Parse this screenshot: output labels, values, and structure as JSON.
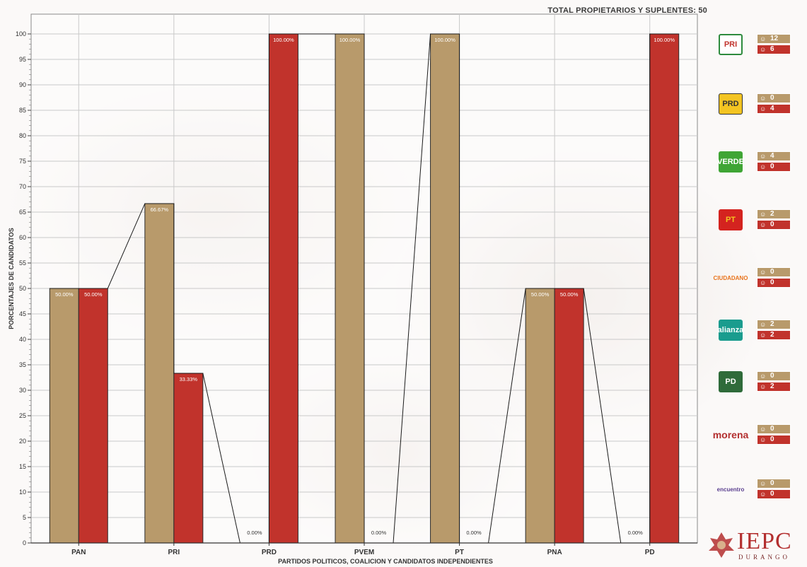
{
  "header": {
    "total_text": "TOTAL PROPIETARIOS Y SUPLENTES:  50"
  },
  "chart_data": {
    "type": "bar",
    "xlabel": "PARTIDOS POLITICOS, COALICION Y CANDIDATOS INDEPENDIENTES",
    "ylabel": "PORCENTAJES  DE CANDIDATOS",
    "ylim": [
      0,
      100
    ],
    "y_ticks": [
      0,
      5,
      10,
      15,
      20,
      25,
      30,
      35,
      40,
      45,
      50,
      55,
      60,
      65,
      70,
      75,
      80,
      85,
      90,
      95,
      100
    ],
    "grid": true,
    "categories": [
      "PAN",
      "PRI",
      "PRD",
      "PVEM",
      "PT",
      "PNA",
      "PD"
    ],
    "series": [
      {
        "color": "#b89a6b",
        "values": [
          50,
          66.67,
          0,
          100,
          100,
          50,
          0
        ],
        "labels": [
          "50.00%",
          "66.67%",
          "0.00%",
          "100.00%",
          "100.00%",
          "50.00%",
          "0.00%"
        ]
      },
      {
        "color": "#c1332c",
        "values": [
          50,
          33.33,
          100,
          0,
          0,
          50,
          100
        ],
        "labels": [
          "50.00%",
          "33.33%",
          "100.00%",
          "0.00%",
          "0.00%",
          "50.00%",
          "100.00%"
        ]
      }
    ]
  },
  "legend": {
    "male_color": "#b89a6b",
    "female_color": "#c1332c",
    "parties": [
      {
        "logo": "PRI",
        "logo_text": "PRI",
        "male": "12",
        "female": "6"
      },
      {
        "logo": "PRD",
        "logo_text": "PRD",
        "male": "0",
        "female": "4"
      },
      {
        "logo": "VERDE",
        "logo_text": "VERDE",
        "male": "4",
        "female": "0"
      },
      {
        "logo": "PT",
        "logo_text": "PT",
        "male": "2",
        "female": "0"
      },
      {
        "logo": "MOVIMIENTO CIUDADANO",
        "logo_text": "CIUDADANO",
        "male": "0",
        "female": "0"
      },
      {
        "logo": "alianza",
        "logo_text": "alianza",
        "male": "2",
        "female": "2"
      },
      {
        "logo": "PD",
        "logo_text": "PD",
        "male": "0",
        "female": "2"
      },
      {
        "logo": "morena",
        "logo_text": "morena",
        "male": "0",
        "female": "0"
      },
      {
        "logo": "encuentro social",
        "logo_text": "encuentro",
        "male": "0",
        "female": "0"
      }
    ]
  },
  "footer_logo": {
    "name": "IEPC",
    "sub": "DURANGO"
  }
}
